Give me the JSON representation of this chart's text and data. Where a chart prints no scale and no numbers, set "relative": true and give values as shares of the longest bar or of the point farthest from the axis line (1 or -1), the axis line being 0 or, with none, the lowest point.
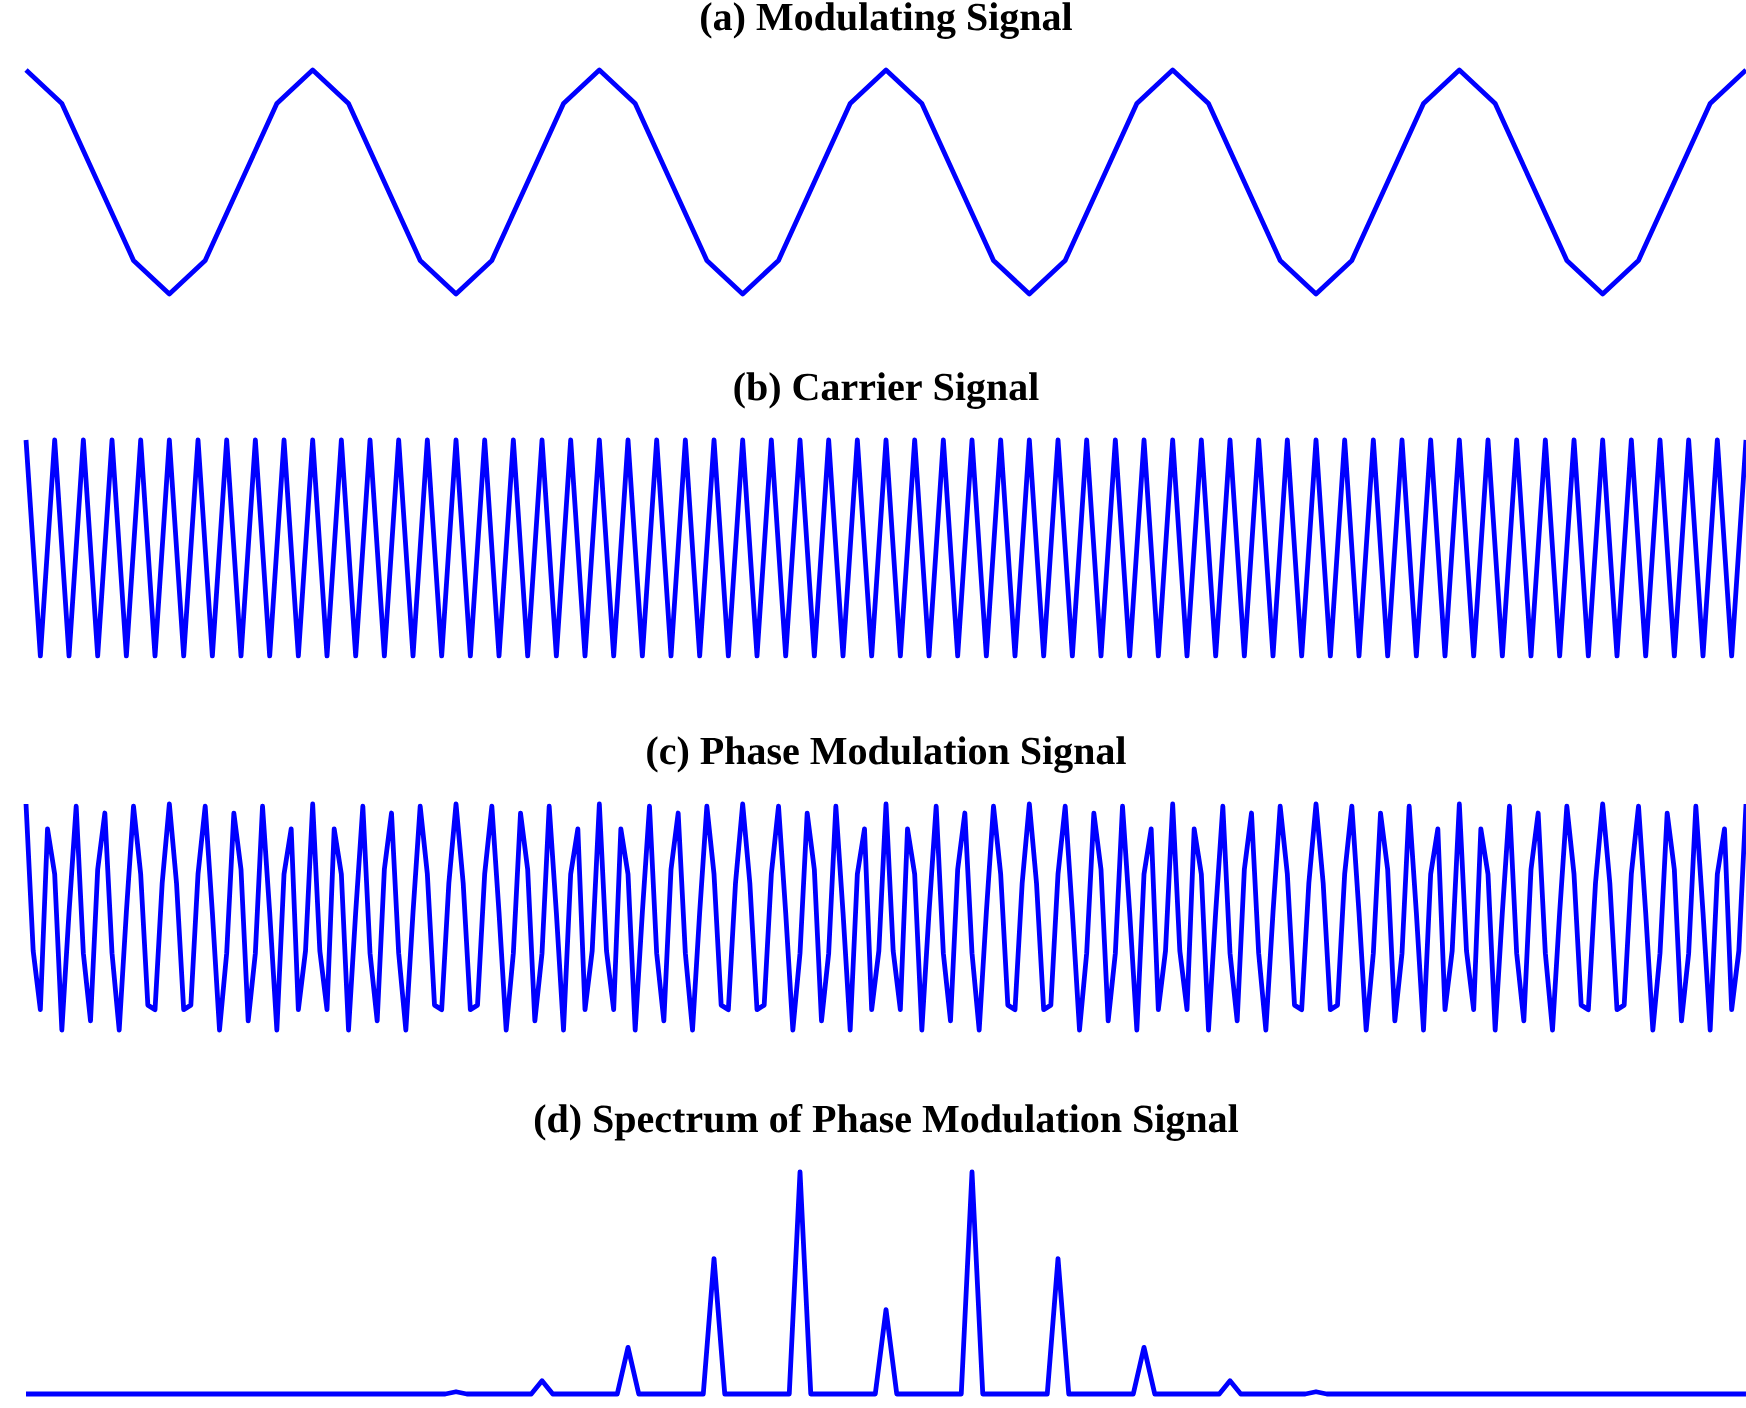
{
  "chart_data": [
    {
      "type": "line",
      "title": "(a) Modulating Signal",
      "relative": true,
      "color": "#0000ff",
      "categories": [
        null,
        null,
        null,
        null,
        null,
        null,
        null,
        null,
        null,
        null,
        null,
        null,
        null,
        null,
        null,
        null,
        null,
        null,
        null,
        null,
        null,
        null,
        null,
        null,
        null,
        null,
        null,
        null,
        null,
        null,
        null,
        null,
        null,
        null,
        null,
        null,
        null,
        null,
        null,
        null,
        null,
        null,
        null,
        null,
        null,
        null,
        null,
        null,
        null
      ],
      "values": [
        1,
        0.85,
        0.5,
        0.15,
        0,
        0.15,
        0.5,
        0.85,
        1,
        0.85,
        0.5,
        0.15,
        0,
        0.15,
        0.5,
        0.85,
        1,
        0.85,
        0.5,
        0.15,
        0,
        0.15,
        0.5,
        0.85,
        1,
        0.85,
        0.5,
        0.15,
        0,
        0.15,
        0.5,
        0.85,
        1,
        0.85,
        0.5,
        0.15,
        0,
        0.15,
        0.5,
        0.85,
        1,
        0.85,
        0.5,
        0.15,
        0,
        0.15,
        0.5,
        0.85,
        1
      ]
    },
    {
      "type": "line",
      "title": "(b) Carrier Signal",
      "relative": true,
      "color": "#0000ff",
      "categories": [
        null,
        null,
        null,
        null,
        null,
        null,
        null,
        null,
        null,
        null,
        null,
        null,
        null,
        null,
        null,
        null,
        null,
        null,
        null,
        null,
        null,
        null,
        null,
        null,
        null,
        null,
        null,
        null,
        null,
        null,
        null,
        null,
        null,
        null,
        null,
        null,
        null,
        null,
        null,
        null,
        null,
        null,
        null,
        null,
        null,
        null,
        null,
        null,
        null,
        null,
        null,
        null,
        null,
        null,
        null,
        null,
        null,
        null,
        null,
        null,
        null,
        null,
        null,
        null,
        null,
        null,
        null,
        null,
        null,
        null,
        null,
        null,
        null,
        null,
        null,
        null,
        null,
        null,
        null,
        null,
        null,
        null,
        null,
        null,
        null,
        null,
        null,
        null,
        null,
        null,
        null,
        null,
        null,
        null,
        null,
        null,
        null,
        null,
        null,
        null,
        null,
        null,
        null,
        null,
        null,
        null,
        null,
        null,
        null,
        null,
        null,
        null,
        null,
        null,
        null,
        null,
        null,
        null,
        null,
        null,
        null
      ],
      "values": [
        1,
        0,
        1,
        0,
        1,
        0,
        1,
        0,
        1,
        0,
        1,
        0,
        1,
        0,
        1,
        0,
        1,
        0,
        1,
        0,
        1,
        0,
        1,
        0,
        1,
        0,
        1,
        0,
        1,
        0,
        1,
        0,
        1,
        0,
        1,
        0,
        1,
        0,
        1,
        0,
        1,
        0,
        1,
        0,
        1,
        0,
        1,
        0,
        1,
        0,
        1,
        0,
        1,
        0,
        1,
        0,
        1,
        0,
        1,
        0,
        1,
        0,
        1,
        0,
        1,
        0,
        1,
        0,
        1,
        0,
        1,
        0,
        1,
        0,
        1,
        0,
        1,
        0,
        1,
        0,
        1,
        0,
        1,
        0,
        1,
        0,
        1,
        0,
        1,
        0,
        1,
        0,
        1,
        0,
        1,
        0,
        1,
        0,
        1,
        0,
        1,
        0,
        1,
        0,
        1,
        0,
        1,
        0,
        1,
        0,
        1,
        0,
        1,
        0,
        1,
        0,
        1,
        0,
        1,
        0,
        1
      ]
    },
    {
      "type": "line",
      "title": "(c) Phase Modulation Signal",
      "relative": true,
      "color": "#0000ff",
      "categories": [
        null,
        null,
        null,
        null,
        null,
        null,
        null,
        null,
        null,
        null,
        null,
        null,
        null,
        null,
        null,
        null,
        null,
        null,
        null,
        null,
        null,
        null,
        null,
        null,
        null,
        null,
        null,
        null,
        null,
        null,
        null,
        null,
        null,
        null,
        null,
        null,
        null,
        null,
        null,
        null,
        null,
        null,
        null,
        null,
        null,
        null,
        null,
        null,
        null,
        null,
        null,
        null,
        null,
        null,
        null,
        null,
        null,
        null,
        null,
        null,
        null,
        null,
        null,
        null,
        null,
        null,
        null,
        null,
        null,
        null,
        null,
        null,
        null,
        null,
        null,
        null,
        null,
        null,
        null,
        null,
        null,
        null,
        null,
        null,
        null,
        null,
        null,
        null,
        null,
        null,
        null,
        null,
        null,
        null,
        null,
        null,
        null,
        null,
        null,
        null,
        null,
        null,
        null,
        null,
        null,
        null,
        null,
        null,
        null,
        null,
        null,
        null,
        null,
        null,
        null,
        null,
        null,
        null,
        null,
        null,
        null,
        null,
        null,
        null,
        null,
        null,
        null,
        null,
        null,
        null,
        null,
        null,
        null,
        null,
        null,
        null,
        null,
        null,
        null,
        null,
        null,
        null,
        null,
        null,
        null,
        null,
        null,
        null,
        null,
        null,
        null,
        null,
        null,
        null,
        null,
        null,
        null,
        null,
        null,
        null,
        null,
        null,
        null,
        null,
        null,
        null,
        null,
        null,
        null,
        null,
        null,
        null,
        null,
        null,
        null,
        null,
        null,
        null,
        null,
        null,
        null,
        null,
        null,
        null,
        null,
        null,
        null,
        null,
        null,
        null,
        null,
        null,
        null,
        null,
        null,
        null,
        null,
        null,
        null,
        null,
        null,
        null,
        null,
        null,
        null,
        null,
        null,
        null,
        null,
        null,
        null,
        null,
        null,
        null,
        null,
        null,
        null,
        null,
        null,
        null,
        null,
        null,
        null,
        null,
        null,
        null,
        null,
        null,
        null,
        null,
        null,
        null,
        null,
        null,
        null,
        null,
        null,
        null,
        null,
        null,
        null
      ],
      "values": [
        1,
        0.35,
        0.09,
        0.89,
        0.69,
        0,
        0.52,
        0.99,
        0.34,
        0.04,
        0.71,
        0.96,
        0.34,
        0,
        0.52,
        0.99,
        0.69,
        0.11,
        0.09,
        0.65,
        1,
        0.65,
        0.09,
        0.11,
        0.69,
        0.99,
        0.52,
        0,
        0.34,
        0.96,
        0.71,
        0.04,
        0.34,
        0.99,
        0.52,
        0,
        0.69,
        0.89,
        0.09,
        0.35,
        1,
        0.35,
        0.09,
        0.89,
        0.69,
        0,
        0.52,
        0.99,
        0.34,
        0.04,
        0.71,
        0.96,
        0.34,
        0,
        0.52,
        0.99,
        0.69,
        0.11,
        0.09,
        0.65,
        1,
        0.65,
        0.09,
        0.11,
        0.69,
        0.99,
        0.52,
        0,
        0.34,
        0.96,
        0.71,
        0.04,
        0.34,
        0.99,
        0.52,
        0,
        0.69,
        0.89,
        0.09,
        0.35,
        1,
        0.35,
        0.09,
        0.89,
        0.69,
        0,
        0.52,
        0.99,
        0.34,
        0.04,
        0.71,
        0.96,
        0.34,
        0,
        0.52,
        0.99,
        0.69,
        0.11,
        0.09,
        0.65,
        1,
        0.65,
        0.09,
        0.11,
        0.69,
        0.99,
        0.52,
        0,
        0.34,
        0.96,
        0.71,
        0.04,
        0.34,
        0.99,
        0.52,
        0,
        0.69,
        0.89,
        0.09,
        0.35,
        1,
        0.35,
        0.09,
        0.89,
        0.69,
        0,
        0.52,
        0.99,
        0.34,
        0.04,
        0.71,
        0.96,
        0.34,
        0,
        0.52,
        0.99,
        0.69,
        0.11,
        0.09,
        0.65,
        1,
        0.65,
        0.09,
        0.11,
        0.69,
        0.99,
        0.52,
        0,
        0.34,
        0.96,
        0.71,
        0.04,
        0.34,
        0.99,
        0.52,
        0,
        0.69,
        0.89,
        0.09,
        0.35,
        1,
        0.35,
        0.09,
        0.89,
        0.69,
        0,
        0.52,
        0.99,
        0.34,
        0.04,
        0.71,
        0.96,
        0.34,
        0,
        0.52,
        0.99,
        0.69,
        0.11,
        0.09,
        0.65,
        1,
        0.65,
        0.09,
        0.11,
        0.69,
        0.99,
        0.52,
        0,
        0.34,
        0.96,
        0.71,
        0.04,
        0.34,
        0.99,
        0.52,
        0,
        0.69,
        0.89,
        0.09,
        0.35,
        1,
        0.35,
        0.09,
        0.89,
        0.69,
        0,
        0.52,
        0.99,
        0.34,
        0.04,
        0.71,
        0.96,
        0.34,
        0,
        0.52,
        0.99,
        0.69,
        0.11,
        0.09,
        0.65,
        1,
        0.65,
        0.09,
        0.11,
        0.69,
        0.99,
        0.52,
        0,
        0.34,
        0.96,
        0.71,
        0.04,
        0.34,
        0.99,
        0.52,
        0,
        0.69,
        0.89,
        0.09,
        0.35,
        1
      ]
    },
    {
      "type": "line",
      "title": "(d) Spectrum of Phase Modulation Signal",
      "relative": true,
      "color": "#0000ff",
      "categories": [
        null,
        null,
        null,
        null,
        null,
        null,
        null,
        null,
        null,
        null,
        null,
        null,
        null,
        null,
        null,
        null,
        null,
        null,
        null,
        null,
        null,
        null,
        null,
        null,
        null,
        null,
        null,
        null,
        null,
        null,
        null,
        null,
        null,
        null,
        null,
        null,
        null,
        null,
        null,
        null,
        null,
        null,
        null,
        null,
        null,
        null,
        null,
        null,
        null,
        null,
        null,
        null,
        null,
        null,
        null,
        null,
        null,
        null,
        null,
        null,
        null,
        null,
        null,
        null,
        null,
        null,
        null,
        null,
        null,
        null,
        null,
        null,
        null,
        null,
        null,
        null,
        null,
        null,
        null,
        null,
        null,
        null,
        null,
        null,
        null,
        null,
        null,
        null,
        null,
        null,
        null,
        null,
        null,
        null,
        null,
        null,
        null,
        null,
        null,
        null,
        null,
        null,
        null,
        null,
        null,
        null,
        null,
        null,
        null,
        null,
        null,
        null,
        null,
        null,
        null,
        null,
        null,
        null,
        null,
        null,
        null,
        null,
        null,
        null,
        null,
        null,
        null,
        null,
        null,
        null,
        null,
        null,
        null,
        null,
        null,
        null,
        null,
        null,
        null,
        null,
        null,
        null,
        null,
        null,
        null,
        null,
        null,
        null,
        null,
        null,
        null,
        null,
        null,
        null,
        null,
        null,
        null,
        null,
        null,
        null,
        null
      ],
      "values": [
        0,
        0,
        0,
        0,
        0,
        0,
        0,
        0,
        0,
        0,
        0,
        0,
        0,
        0,
        0,
        0,
        0,
        0,
        0,
        0,
        0,
        0,
        0,
        0,
        0,
        0,
        0,
        0,
        0,
        0,
        0,
        0,
        0,
        0,
        0,
        0,
        0,
        0,
        0,
        0,
        0.01,
        0,
        0,
        0,
        0,
        0,
        0,
        0,
        0.06,
        0,
        0,
        0,
        0,
        0,
        0,
        0,
        0.21,
        0,
        0,
        0,
        0,
        0,
        0,
        0,
        0.61,
        0,
        0,
        0,
        0,
        0,
        0,
        0,
        1,
        0,
        0,
        0,
        0,
        0,
        0,
        0,
        0.38,
        0,
        0,
        0,
        0,
        0,
        0,
        0,
        1,
        0,
        0,
        0,
        0,
        0,
        0,
        0,
        0.61,
        0,
        0,
        0,
        0,
        0,
        0,
        0,
        0.21,
        0,
        0,
        0,
        0,
        0,
        0,
        0,
        0.06,
        0,
        0,
        0,
        0,
        0,
        0,
        0,
        0.01,
        0,
        0,
        0,
        0,
        0,
        0,
        0,
        0,
        0,
        0,
        0,
        0,
        0,
        0,
        0,
        0,
        0,
        0,
        0,
        0,
        0,
        0,
        0,
        0,
        0,
        0,
        0,
        0,
        0,
        0,
        0,
        0,
        0,
        0,
        0,
        0,
        0,
        0,
        0,
        0
      ]
    }
  ]
}
